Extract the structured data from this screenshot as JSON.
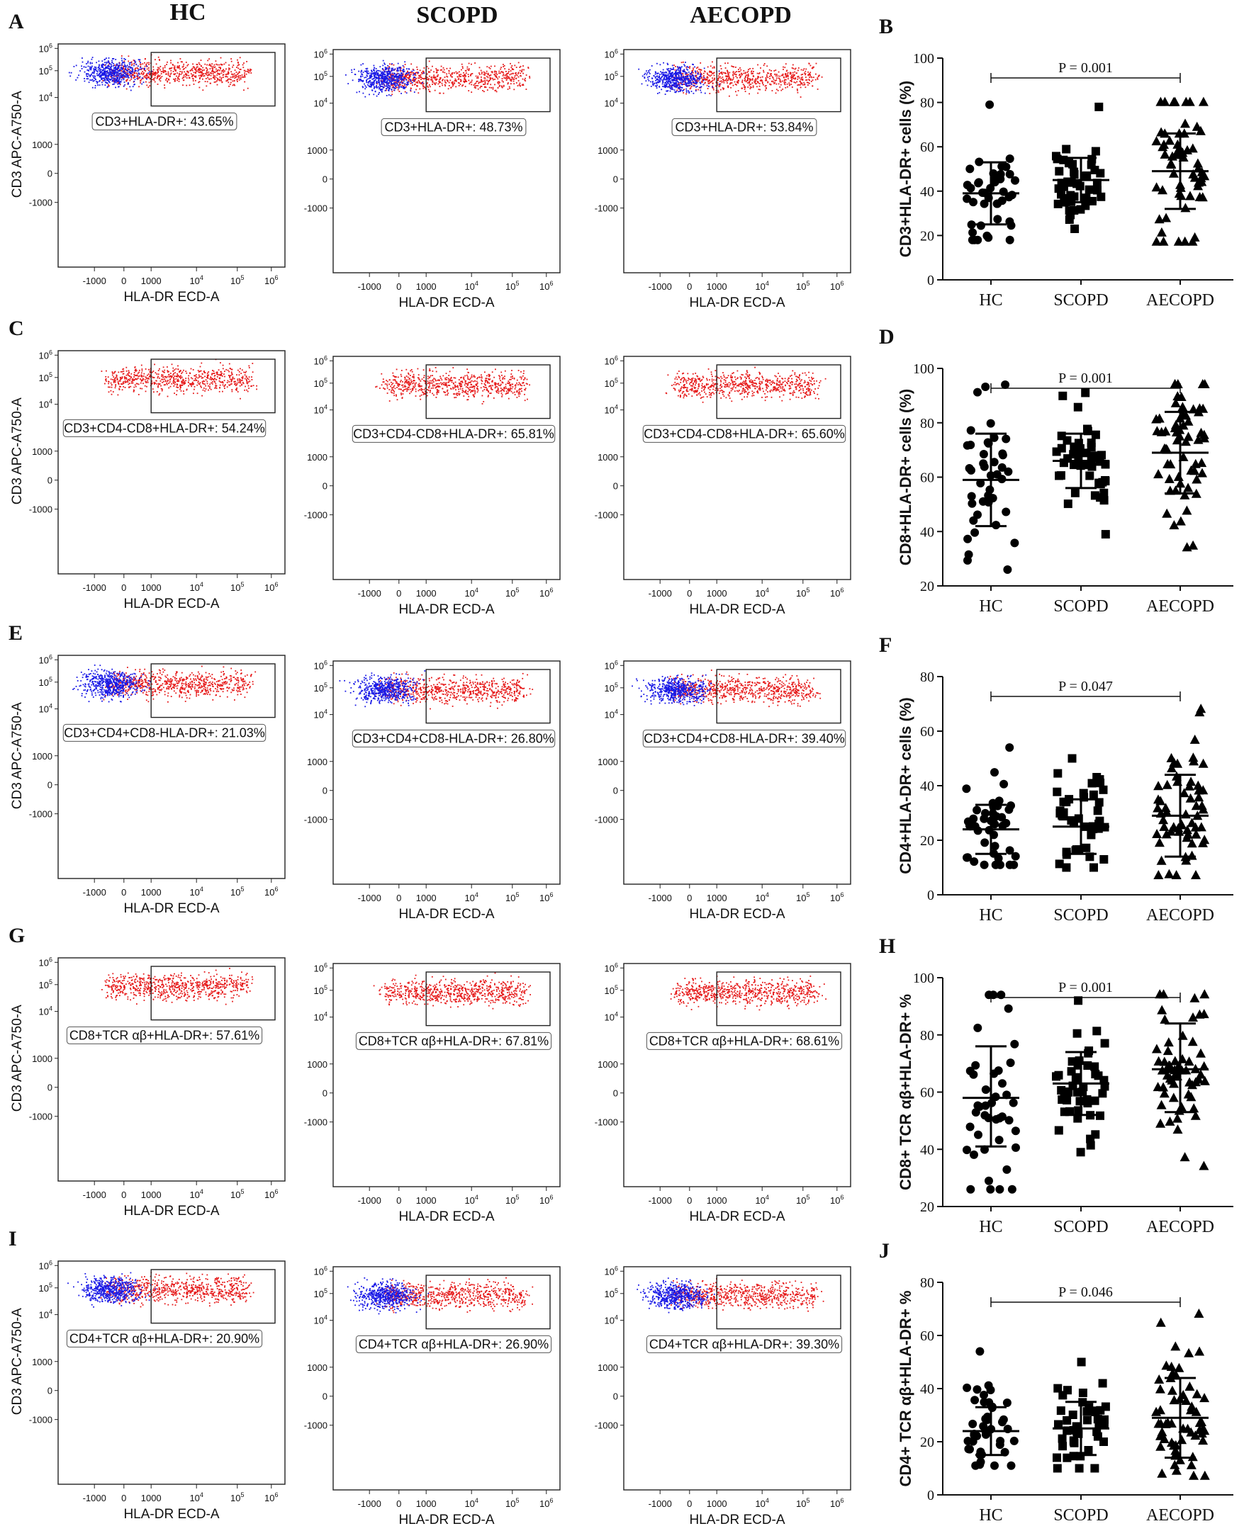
{
  "columns": [
    "HC",
    "SCOPD",
    "AECOPD"
  ],
  "flow_axis": {
    "x_label": "HLA-DR ECD-A",
    "y_label": "CD3 APC-A750-A",
    "x_ticks": [
      "-1000",
      "0",
      "1000",
      "10^4",
      "10^5",
      "10^6"
    ],
    "y_ticks": [
      "10^6",
      "10^5",
      "10^4",
      "1000",
      "0",
      "-1000"
    ]
  },
  "flow_rows": [
    {
      "letter": "A",
      "blue": true,
      "gates": [
        "CD3+HLA-DR+: 43.65%",
        "CD3+HLA-DR+: 48.73%",
        "CD3+HLA-DR+: 53.84%"
      ]
    },
    {
      "letter": "C",
      "blue": false,
      "gates": [
        "CD3+CD4-CD8+HLA-DR+: 54.24%",
        "CD3+CD4-CD8+HLA-DR+: 65.81%",
        "CD3+CD4-CD8+HLA-DR+: 65.60%"
      ]
    },
    {
      "letter": "E",
      "blue": true,
      "gates": [
        "CD3+CD4+CD8-HLA-DR+: 21.03%",
        "CD3+CD4+CD8-HLA-DR+: 26.80%",
        "CD3+CD4+CD8-HLA-DR+: 39.40%"
      ]
    },
    {
      "letter": "G",
      "blue": false,
      "gates": [
        "CD8+TCR αβ+HLA-DR+: 57.61%",
        "CD8+TCR αβ+HLA-DR+: 67.81%",
        "CD8+TCR αβ+HLA-DR+: 68.61%"
      ]
    },
    {
      "letter": "I",
      "blue": true,
      "gates": [
        "CD4+TCR αβ+HLA-DR+: 20.90%",
        "CD4+TCR αβ+HLA-DR+: 26.90%",
        "CD4+TCR αβ+HLA-DR+: 39.30%"
      ]
    }
  ],
  "colors": {
    "blue_events": "#1a1ae6",
    "red_events": "#e61a1a",
    "axis": "#222222"
  },
  "chart_data": [
    {
      "type": "scatter",
      "letter": "B",
      "ylabel": "CD3+HLA-DR+ cells (%)",
      "categories": [
        "HC",
        "SCOPD",
        "AECOPD"
      ],
      "yticks": [
        0,
        20,
        40,
        60,
        80,
        100
      ],
      "ylim": [
        0,
        100
      ],
      "p_value": "P = 0.001",
      "series": [
        {
          "name": "HC",
          "mean": 39,
          "sd_low": 25,
          "sd_high": 53,
          "min": 18,
          "max": 79,
          "n": 42,
          "marker": "circle"
        },
        {
          "name": "SCOPD",
          "mean": 45,
          "sd_low": 35,
          "sd_high": 55,
          "min": 23,
          "max": 78,
          "n": 45,
          "marker": "square"
        },
        {
          "name": "AECOPD",
          "mean": 49,
          "sd_low": 32,
          "sd_high": 66,
          "min": 17,
          "max": 80,
          "n": 62,
          "marker": "triangle"
        }
      ]
    },
    {
      "type": "scatter",
      "letter": "D",
      "ylabel": "CD8+HLA-DR+ cells (%)",
      "categories": [
        "HC",
        "SCOPD",
        "AECOPD"
      ],
      "yticks": [
        20,
        40,
        60,
        80,
        100
      ],
      "ylim": [
        20,
        100
      ],
      "p_value": "P = 0.001",
      "series": [
        {
          "name": "HC",
          "mean": 59,
          "sd_low": 42,
          "sd_high": 76,
          "min": 26,
          "max": 94,
          "n": 42,
          "marker": "circle"
        },
        {
          "name": "SCOPD",
          "mean": 66,
          "sd_low": 56,
          "sd_high": 76,
          "min": 39,
          "max": 91,
          "n": 45,
          "marker": "square"
        },
        {
          "name": "AECOPD",
          "mean": 69,
          "sd_low": 54,
          "sd_high": 84,
          "min": 34,
          "max": 94,
          "n": 62,
          "marker": "triangle"
        }
      ]
    },
    {
      "type": "scatter",
      "letter": "F",
      "ylabel": "CD4+HLA-DR+ cells (%)",
      "categories": [
        "HC",
        "SCOPD",
        "AECOPD"
      ],
      "yticks": [
        0,
        20,
        40,
        60,
        80
      ],
      "ylim": [
        0,
        80
      ],
      "p_value": "P = 0.047",
      "series": [
        {
          "name": "HC",
          "mean": 24,
          "sd_low": 15,
          "sd_high": 33,
          "min": 11,
          "max": 54,
          "n": 42,
          "marker": "circle"
        },
        {
          "name": "SCOPD",
          "mean": 25,
          "sd_low": 15,
          "sd_high": 35,
          "min": 10,
          "max": 50,
          "n": 45,
          "marker": "square"
        },
        {
          "name": "AECOPD",
          "mean": 29,
          "sd_low": 14,
          "sd_high": 44,
          "min": 7,
          "max": 68,
          "n": 62,
          "marker": "triangle"
        }
      ]
    },
    {
      "type": "scatter",
      "letter": "H",
      "ylabel": "CD8+ TCR αβ+HLA-DR+ %",
      "categories": [
        "HC",
        "SCOPD",
        "AECOPD"
      ],
      "yticks": [
        20,
        40,
        60,
        80,
        100
      ],
      "ylim": [
        20,
        100
      ],
      "p_value": "P = 0.001",
      "series": [
        {
          "name": "HC",
          "mean": 58,
          "sd_low": 41,
          "sd_high": 76,
          "min": 26,
          "max": 94,
          "n": 42,
          "marker": "circle"
        },
        {
          "name": "SCOPD",
          "mean": 63,
          "sd_low": 52,
          "sd_high": 74,
          "min": 39,
          "max": 92,
          "n": 45,
          "marker": "square"
        },
        {
          "name": "AECOPD",
          "mean": 68,
          "sd_low": 53,
          "sd_high": 84,
          "min": 34,
          "max": 94,
          "n": 62,
          "marker": "triangle"
        }
      ]
    },
    {
      "type": "scatter",
      "letter": "J",
      "ylabel": "CD4+ TCR αβ+HLA-DR+ %",
      "categories": [
        "HC",
        "SCOPD",
        "AECOPD"
      ],
      "yticks": [
        0,
        20,
        40,
        60,
        80
      ],
      "ylim": [
        0,
        80
      ],
      "p_value": "P = 0.046",
      "series": [
        {
          "name": "HC",
          "mean": 24,
          "sd_low": 15,
          "sd_high": 33,
          "min": 11,
          "max": 54,
          "n": 42,
          "marker": "circle"
        },
        {
          "name": "SCOPD",
          "mean": 25,
          "sd_low": 15,
          "sd_high": 35,
          "min": 10,
          "max": 50,
          "n": 45,
          "marker": "square"
        },
        {
          "name": "AECOPD",
          "mean": 29,
          "sd_low": 14,
          "sd_high": 44,
          "min": 7,
          "max": 68,
          "n": 62,
          "marker": "triangle"
        }
      ]
    }
  ]
}
